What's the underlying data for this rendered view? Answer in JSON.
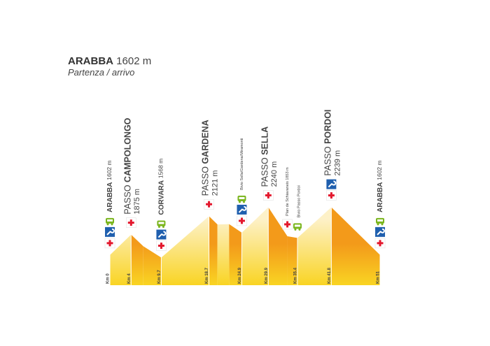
{
  "chart_data": {
    "type": "area",
    "title": "ARABBA",
    "title_note": "1602 m",
    "subtitle": "Partenza / arrivo",
    "x": [
      0,
      4,
      6.3,
      9.7,
      18.7,
      20.3,
      22.5,
      24.9,
      29.9,
      33.5,
      35.4,
      41.8,
      51
    ],
    "values": [
      1602,
      1875,
      1720,
      1568,
      2121,
      2010,
      2015,
      1900,
      2240,
      1853,
      1830,
      2239,
      1602
    ],
    "point_prefixes": [
      null,
      "PASSO",
      null,
      null,
      "PASSO",
      null,
      null,
      null,
      "PASSO",
      null,
      null,
      "PASSO",
      null
    ],
    "point_names": [
      "ARABBA",
      "CAMPOLONGO",
      null,
      "CORVARA",
      "GARDENA",
      null,
      null,
      null,
      "SELLA",
      null,
      null,
      "PORDOI",
      "ARABBA"
    ],
    "value_labels": [
      "1602 m",
      "1875 m",
      null,
      "1568 m",
      "2121 m",
      null,
      null,
      null,
      "2240 m",
      null,
      null,
      "2239 m",
      "1602 m"
    ],
    "point_notes": [
      null,
      null,
      null,
      null,
      null,
      null,
      null,
      "Bivio Sella/Gardena/Miramonti",
      null,
      "Plan de Schiavaneis 1853 m",
      "Bivio Passo Pordoi",
      null,
      null
    ],
    "xlim": [
      0,
      51
    ],
    "ylim": [
      1200,
      2300
    ],
    "xticks": [
      {
        "value": 0,
        "label": "Km 0"
      },
      {
        "value": 4,
        "label": "Km 4"
      },
      {
        "value": 9.7,
        "label": "Km 9.7"
      },
      {
        "value": 18.7,
        "label": "Km 18.7"
      },
      {
        "value": 24.9,
        "label": "Km 24.9"
      },
      {
        "value": 29.9,
        "label": "Km 29.9"
      },
      {
        "value": 35.4,
        "label": "Km 35.4"
      },
      {
        "value": 41.8,
        "label": "Km 41.8"
      },
      {
        "value": 51,
        "label": "Km 51"
      }
    ],
    "colors": {
      "climb": "#fdf1c8",
      "descent": "#f39a1a",
      "base": "#f9d423"
    }
  }
}
